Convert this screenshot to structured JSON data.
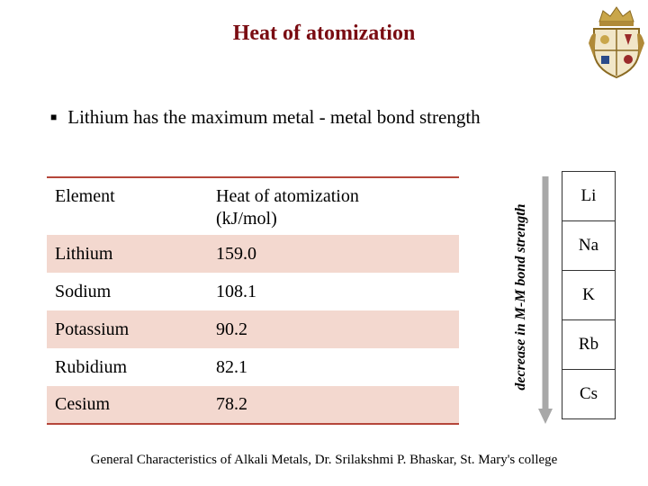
{
  "slide": {
    "title": "Heat of atomization",
    "bullet": "Lithium has the maximum metal - metal bond strength",
    "footer": "General Characteristics of Alkali Metals, Dr. Srilakshmi P. Bhaskar, St. Mary's college"
  },
  "table": {
    "header_element": "Element",
    "header_heat_line1": "Heat of atomization",
    "header_heat_line2": "(kJ/mol)",
    "rows": [
      {
        "element": "Lithium",
        "value": "159.0"
      },
      {
        "element": "Sodium",
        "value": "108.1"
      },
      {
        "element": "Potassium",
        "value": "90.2"
      },
      {
        "element": "Rubidium",
        "value": "82.1"
      },
      {
        "element": "Cesium",
        "value": "78.2"
      }
    ]
  },
  "trend": {
    "label": "decrease in M-M bond strength",
    "elements": [
      "Li",
      "Na",
      "K",
      "Rb",
      "Cs"
    ]
  },
  "colors": {
    "title": "#7a0c12",
    "table_rule": "#b5463a",
    "band": "#f3d8cf"
  },
  "icons": {
    "logo": "college-crest-icon",
    "bullet": "square-bullet-icon",
    "arrow": "down-arrow-icon"
  }
}
